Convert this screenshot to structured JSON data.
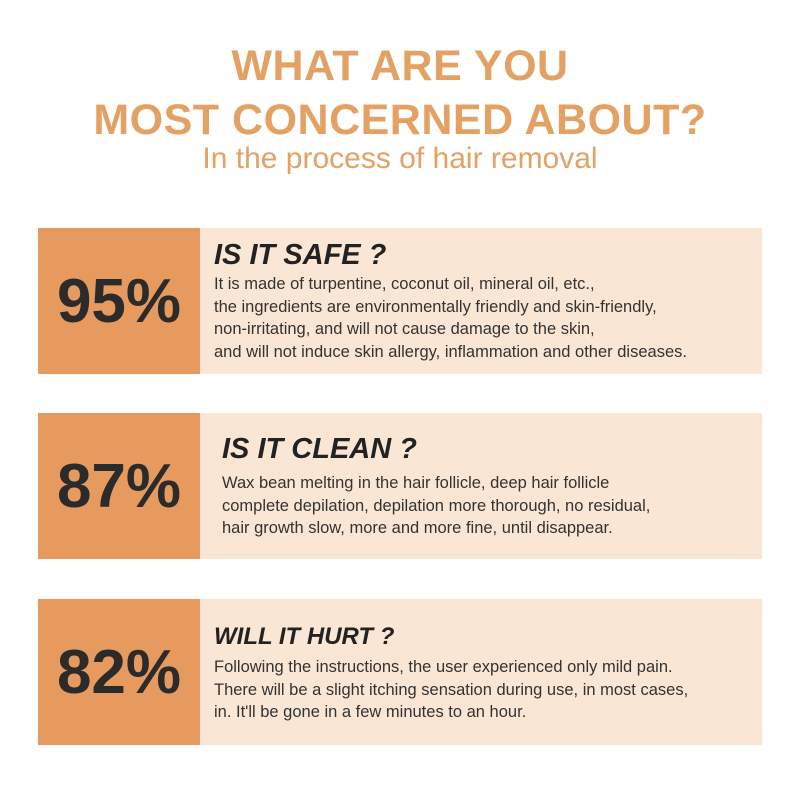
{
  "header": {
    "title_line1": "WHAT ARE YOU",
    "title_line2": "MOST CONCERNED ABOUT?",
    "subtitle": "In the process of hair removal"
  },
  "cards": [
    {
      "percent": "95%",
      "title": "IS IT SAFE ?",
      "lines": [
        "It is made of turpentine, coconut oil, mineral oil, etc.,",
        "the ingredients are environmentally friendly and skin-friendly,",
        "non-irritating, and will not cause damage to the skin,",
        "and will not induce skin allergy, inflammation and other diseases."
      ]
    },
    {
      "percent": "87%",
      "title": "IS IT CLEAN ?",
      "lines": [
        "Wax bean melting in the hair follicle, deep hair follicle",
        "complete depilation, depilation more thorough, no residual,",
        "hair growth slow, more and more fine, until disappear."
      ]
    },
    {
      "percent": "82%",
      "title": "WILL IT HURT ?",
      "lines": [
        "Following the instructions, the user experienced only mild pain.",
        "There will be a slight itching sensation during use, in most cases,",
        "in. It'll be gone in a few minutes to an hour."
      ]
    }
  ],
  "colors": {
    "accent": "#e3a163",
    "percent_box": "#e69a5e",
    "card_bg": "#f9e6d4",
    "text_dark": "#2b2b2b"
  }
}
